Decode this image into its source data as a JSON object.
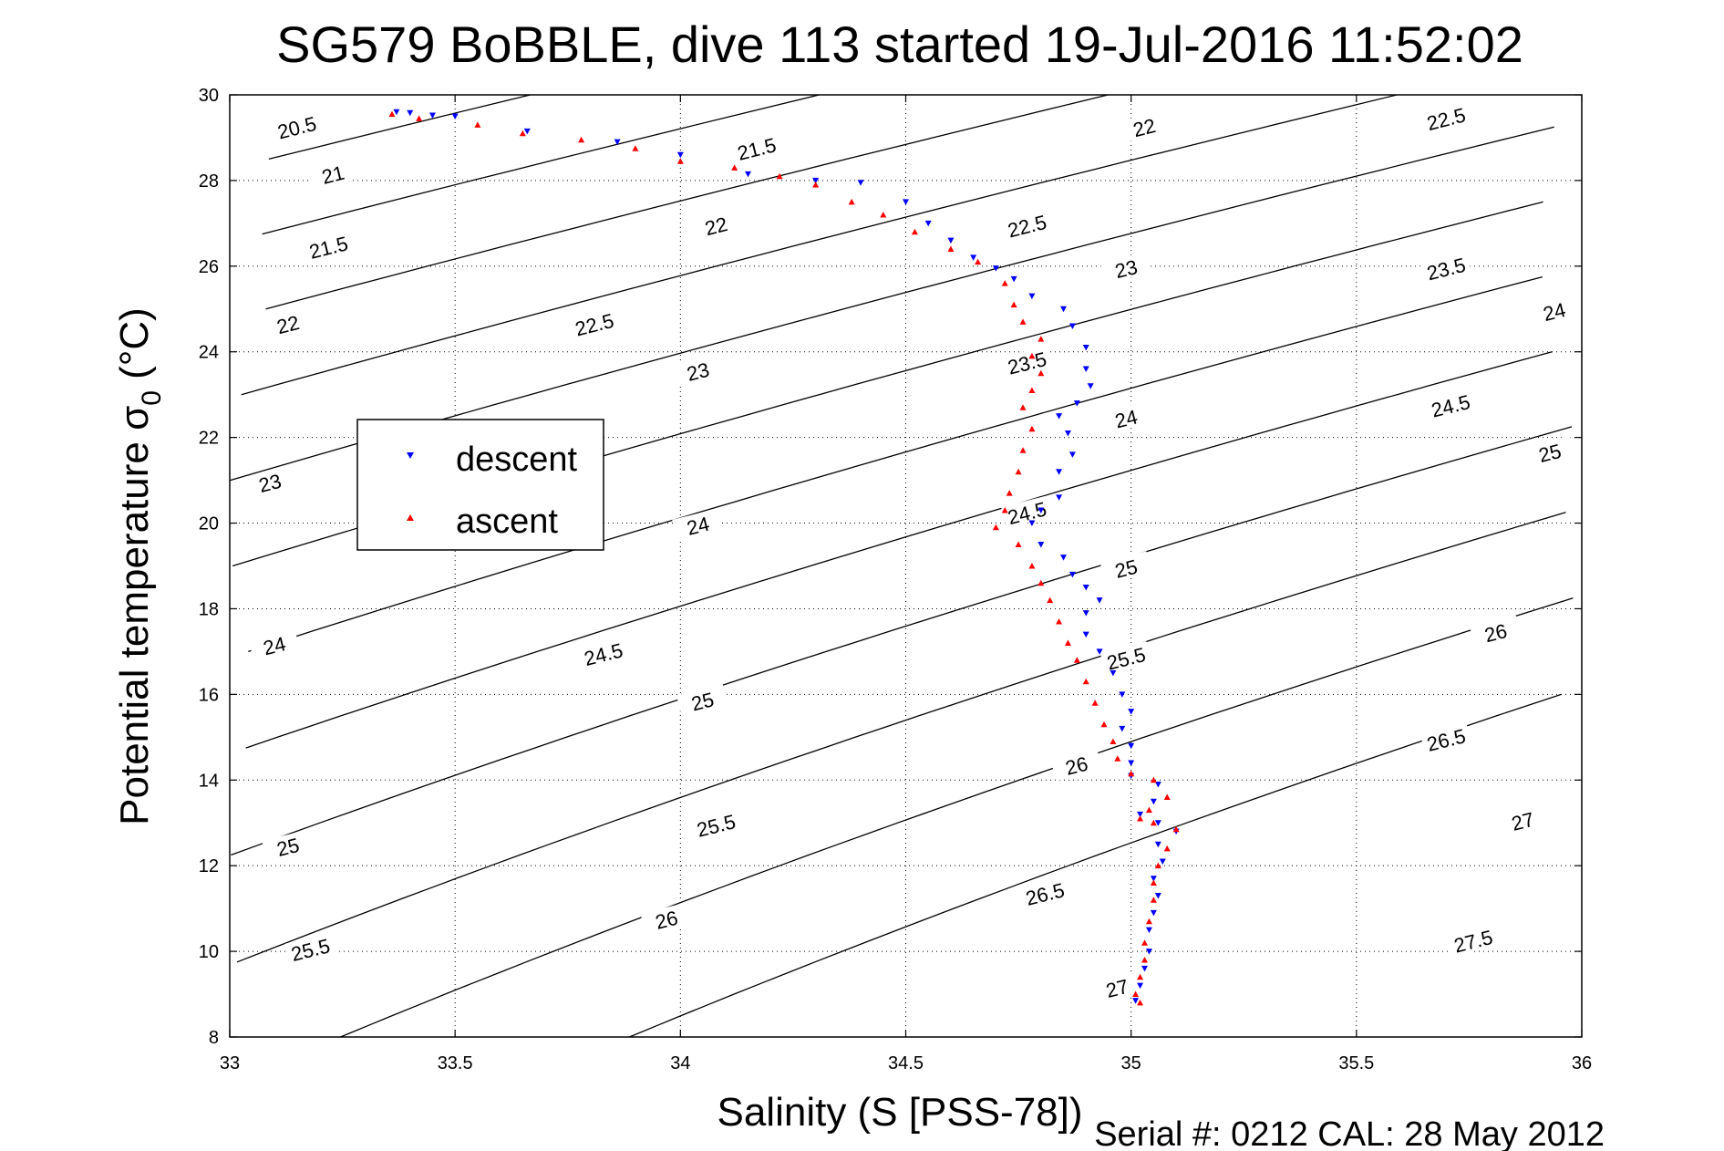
{
  "chart_data": {
    "type": "scatter",
    "title": "SG579 BoBBLE, dive 113 started 19-Jul-2016 11:52:02",
    "xlabel": "Salinity (S [PSS-78])",
    "ylabel_main": "Potential temperature σ",
    "ylabel_sub": "0",
    "ylabel_unit": " (°C)",
    "xlim": [
      33,
      36
    ],
    "ylim": [
      8,
      30
    ],
    "xticks": [
      33,
      33.5,
      34,
      34.5,
      35,
      35.5,
      36
    ],
    "xtick_labels": [
      "33",
      "33.5",
      "34",
      "34.5",
      "35",
      "35.5",
      "36"
    ],
    "yticks": [
      8,
      10,
      12,
      14,
      16,
      18,
      20,
      22,
      24,
      26,
      28,
      30
    ],
    "ytick_labels": [
      "8",
      "10",
      "12",
      "14",
      "16",
      "18",
      "20",
      "22",
      "24",
      "26",
      "28",
      "30"
    ],
    "grid": true,
    "legend_position": "left",
    "contours": {
      "levels": [
        20.5,
        21,
        21.5,
        22,
        22.5,
        23,
        23.5,
        24,
        24.5,
        25,
        25.5,
        26,
        26.5,
        27,
        27.5
      ],
      "labels": [
        {
          "text": "20.5",
          "x": 33.15,
          "y": 29.2
        },
        {
          "text": "21",
          "x": 33.23,
          "y": 28.1
        },
        {
          "text": "21.5",
          "x": 33.22,
          "y": 26.4
        },
        {
          "text": "22",
          "x": 33.13,
          "y": 24.6
        },
        {
          "text": "23",
          "x": 33.09,
          "y": 20.9
        },
        {
          "text": "24",
          "x": 33.1,
          "y": 17.1
        },
        {
          "text": "25",
          "x": 33.13,
          "y": 12.4
        },
        {
          "text": "25.5",
          "x": 33.18,
          "y": 10.0
        },
        {
          "text": "21.5",
          "x": 34.17,
          "y": 28.7
        },
        {
          "text": "22",
          "x": 34.08,
          "y": 26.9
        },
        {
          "text": "22.5",
          "x": 33.81,
          "y": 24.6
        },
        {
          "text": "23",
          "x": 34.04,
          "y": 23.5
        },
        {
          "text": "24",
          "x": 34.04,
          "y": 19.9
        },
        {
          "text": "24.5",
          "x": 33.83,
          "y": 16.9
        },
        {
          "text": "25",
          "x": 34.05,
          "y": 15.8
        },
        {
          "text": "25.5",
          "x": 34.08,
          "y": 12.9
        },
        {
          "text": "26",
          "x": 33.97,
          "y": 10.7
        },
        {
          "text": "22",
          "x": 35.03,
          "y": 29.2
        },
        {
          "text": "22.5",
          "x": 34.77,
          "y": 26.9
        },
        {
          "text": "23",
          "x": 34.99,
          "y": 25.9
        },
        {
          "text": "23.5",
          "x": 34.77,
          "y": 23.7
        },
        {
          "text": "24",
          "x": 34.99,
          "y": 22.4
        },
        {
          "text": "24.5",
          "x": 34.77,
          "y": 20.2
        },
        {
          "text": "25",
          "x": 34.99,
          "y": 18.9
        },
        {
          "text": "25.5",
          "x": 34.99,
          "y": 16.8
        },
        {
          "text": "26",
          "x": 34.88,
          "y": 14.3
        },
        {
          "text": "26.5",
          "x": 34.81,
          "y": 11.3
        },
        {
          "text": "27",
          "x": 34.97,
          "y": 9.1
        },
        {
          "text": "22.5",
          "x": 35.7,
          "y": 29.4
        },
        {
          "text": "23.5",
          "x": 35.7,
          "y": 25.9
        },
        {
          "text": "24",
          "x": 35.94,
          "y": 24.9
        },
        {
          "text": "24.5",
          "x": 35.71,
          "y": 22.7
        },
        {
          "text": "25",
          "x": 35.93,
          "y": 21.6
        },
        {
          "text": "26",
          "x": 35.81,
          "y": 17.4
        },
        {
          "text": "26.5",
          "x": 35.7,
          "y": 14.9
        },
        {
          "text": "27",
          "x": 35.87,
          "y": 13.0
        },
        {
          "text": "27.5",
          "x": 35.76,
          "y": 10.2
        }
      ]
    },
    "series": [
      {
        "name": "descent",
        "color": "#0000ff",
        "marker": "triangle-down",
        "points": [
          [
            33.37,
            29.6
          ],
          [
            33.4,
            29.58
          ],
          [
            33.45,
            29.52
          ],
          [
            33.5,
            29.5
          ],
          [
            33.66,
            29.15
          ],
          [
            33.86,
            28.9
          ],
          [
            34.0,
            28.6
          ],
          [
            34.15,
            28.15
          ],
          [
            34.3,
            28.0
          ],
          [
            34.4,
            27.95
          ],
          [
            34.5,
            27.5
          ],
          [
            34.55,
            27.0
          ],
          [
            34.6,
            26.6
          ],
          [
            34.65,
            26.2
          ],
          [
            34.7,
            25.95
          ],
          [
            34.74,
            25.7
          ],
          [
            34.78,
            25.3
          ],
          [
            34.85,
            25.0
          ],
          [
            34.87,
            24.6
          ],
          [
            34.9,
            24.1
          ],
          [
            34.9,
            23.6
          ],
          [
            34.91,
            23.2
          ],
          [
            34.88,
            22.8
          ],
          [
            34.84,
            22.5
          ],
          [
            34.86,
            22.1
          ],
          [
            34.87,
            21.6
          ],
          [
            34.84,
            21.2
          ],
          [
            34.84,
            20.6
          ],
          [
            34.8,
            20.3
          ],
          [
            34.78,
            20.0
          ],
          [
            34.8,
            19.5
          ],
          [
            34.85,
            19.2
          ],
          [
            34.87,
            18.8
          ],
          [
            34.9,
            18.5
          ],
          [
            34.93,
            18.2
          ],
          [
            34.9,
            17.9
          ],
          [
            34.9,
            17.4
          ],
          [
            34.93,
            17.0
          ],
          [
            34.96,
            16.5
          ],
          [
            34.98,
            16.0
          ],
          [
            35.0,
            15.6
          ],
          [
            34.98,
            15.2
          ],
          [
            35.0,
            14.8
          ],
          [
            35.0,
            14.4
          ],
          [
            35.0,
            14.1
          ],
          [
            35.06,
            13.9
          ],
          [
            35.05,
            13.5
          ],
          [
            35.02,
            13.2
          ],
          [
            35.06,
            13.0
          ],
          [
            35.1,
            12.8
          ],
          [
            35.06,
            12.5
          ],
          [
            35.07,
            12.1
          ],
          [
            35.05,
            11.7
          ],
          [
            35.06,
            11.3
          ],
          [
            35.05,
            10.9
          ],
          [
            35.04,
            10.5
          ],
          [
            35.04,
            10.0
          ],
          [
            35.03,
            9.6
          ],
          [
            35.02,
            9.2
          ],
          [
            35.01,
            8.85
          ]
        ]
      },
      {
        "name": "ascent",
        "color": "#ff0000",
        "marker": "triangle-up",
        "points": [
          [
            33.36,
            29.55
          ],
          [
            33.42,
            29.45
          ],
          [
            33.55,
            29.3
          ],
          [
            33.65,
            29.1
          ],
          [
            33.78,
            28.95
          ],
          [
            33.9,
            28.75
          ],
          [
            34.0,
            28.45
          ],
          [
            34.12,
            28.3
          ],
          [
            34.22,
            28.1
          ],
          [
            34.3,
            27.9
          ],
          [
            34.38,
            27.5
          ],
          [
            34.45,
            27.2
          ],
          [
            34.52,
            26.8
          ],
          [
            34.6,
            26.4
          ],
          [
            34.66,
            26.1
          ],
          [
            34.72,
            25.6
          ],
          [
            34.74,
            25.1
          ],
          [
            34.76,
            24.7
          ],
          [
            34.8,
            24.3
          ],
          [
            34.78,
            23.9
          ],
          [
            34.8,
            23.5
          ],
          [
            34.78,
            23.1
          ],
          [
            34.76,
            22.7
          ],
          [
            34.78,
            22.2
          ],
          [
            34.76,
            21.7
          ],
          [
            34.75,
            21.2
          ],
          [
            34.73,
            20.7
          ],
          [
            34.72,
            20.3
          ],
          [
            34.7,
            19.9
          ],
          [
            34.75,
            19.5
          ],
          [
            34.78,
            19.0
          ],
          [
            34.8,
            18.6
          ],
          [
            34.82,
            18.2
          ],
          [
            34.84,
            17.7
          ],
          [
            34.86,
            17.2
          ],
          [
            34.88,
            16.8
          ],
          [
            34.9,
            16.3
          ],
          [
            34.92,
            15.8
          ],
          [
            34.94,
            15.3
          ],
          [
            34.96,
            14.9
          ],
          [
            34.97,
            14.5
          ],
          [
            35.0,
            14.15
          ],
          [
            35.05,
            14.0
          ],
          [
            35.08,
            13.6
          ],
          [
            35.04,
            13.3
          ],
          [
            35.02,
            13.1
          ],
          [
            35.05,
            13.0
          ],
          [
            35.1,
            12.85
          ],
          [
            35.08,
            12.4
          ],
          [
            35.06,
            12.0
          ],
          [
            35.05,
            11.6
          ],
          [
            35.05,
            11.2
          ],
          [
            35.04,
            10.7
          ],
          [
            35.03,
            10.2
          ],
          [
            35.03,
            9.8
          ],
          [
            35.02,
            9.4
          ],
          [
            35.01,
            9.0
          ],
          [
            35.02,
            8.8
          ]
        ]
      }
    ],
    "footer": "Serial #: 0212  CAL: 28 May 2012"
  }
}
